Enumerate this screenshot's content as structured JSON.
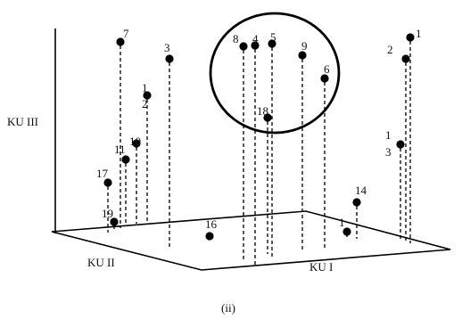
{
  "axes": {
    "vertical_label": "KU III",
    "left_label": "KU II",
    "right_label": "KU I"
  },
  "caption": "(ii)",
  "points": [
    {
      "label": "1"
    },
    {
      "label": "2"
    },
    {
      "label": "1"
    },
    {
      "label": "3"
    },
    {
      "label": "4"
    },
    {
      "label": "5"
    },
    {
      "label": "6"
    },
    {
      "label": "7"
    },
    {
      "label": "8"
    },
    {
      "label": "9"
    },
    {
      "label": "10"
    },
    {
      "label": "11"
    },
    {
      "label": "1"
    },
    {
      "label": "2"
    },
    {
      "label": "14"
    },
    {
      "label": "1"
    },
    {
      "label": "16"
    },
    {
      "label": "17"
    },
    {
      "label": "18"
    },
    {
      "label": "19"
    },
    {
      "label": "1"
    },
    {
      "label": "3"
    }
  ],
  "cluster_circle": {
    "description_visible": false
  }
}
